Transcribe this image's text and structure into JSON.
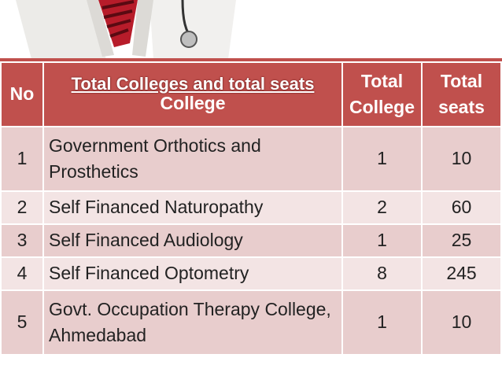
{
  "title": "Total Colleges and total seats",
  "table": {
    "headers": [
      "No",
      "College",
      "Total College",
      "Total seats"
    ],
    "rows": [
      [
        1,
        "Government Orthotics and Prosthetics",
        1,
        10
      ],
      [
        2,
        "Self Financed Naturopathy",
        2,
        60
      ],
      [
        3,
        "Self Financed Audiology",
        1,
        25
      ],
      [
        4,
        "Self Financed Optometry",
        8,
        245
      ],
      [
        5,
        "Govt. Occupation Therapy College, Ahmedabad",
        1,
        10
      ]
    ]
  }
}
